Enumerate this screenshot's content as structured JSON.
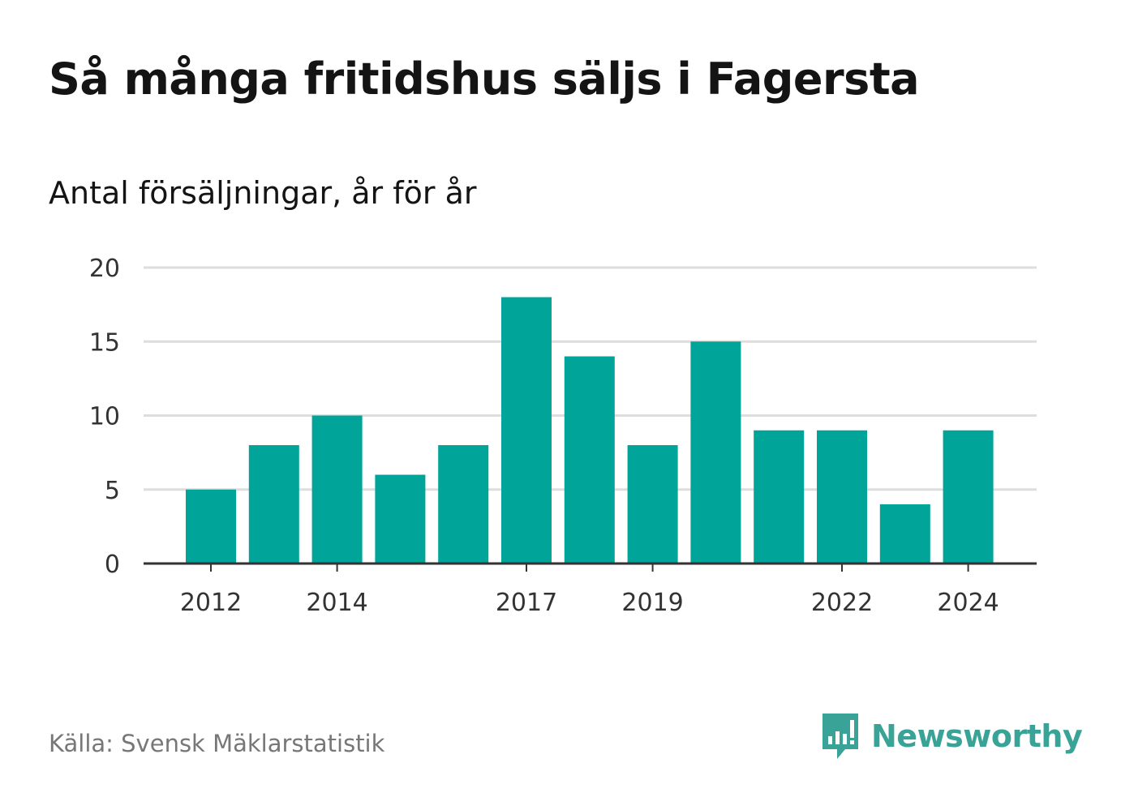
{
  "title": "Så många fritidshus säljs i Fagersta",
  "subtitle": "Antal försäljningar, år för år",
  "source": "Källa: Svensk Mäklarstatistik",
  "brand": {
    "name": "Newsworthy",
    "icon": "newsworthy-bar-chart-icon",
    "color": "#3aa397"
  },
  "colors": {
    "bar": "#00a499",
    "grid": "#dddddd",
    "axis": "#333333",
    "text": "#141414",
    "source": "#777777"
  },
  "chart_data": {
    "type": "bar",
    "categories": [
      "2012",
      "2013",
      "2014",
      "2015",
      "2016",
      "2017",
      "2018",
      "2019",
      "2020",
      "2021",
      "2022",
      "2023",
      "2024"
    ],
    "values": [
      5,
      8,
      10,
      6,
      8,
      18,
      14,
      8,
      15,
      9,
      9,
      4,
      9
    ],
    "x_tick_labels": [
      "2012",
      "2014",
      "2017",
      "2019",
      "2022",
      "2024"
    ],
    "y_ticks": [
      0,
      5,
      10,
      15,
      20
    ],
    "ylim": [
      0,
      20
    ],
    "grid": true,
    "title": "Så många fritidshus säljs i Fagersta",
    "subtitle": "Antal försäljningar, år för år",
    "xlabel": "",
    "ylabel": ""
  }
}
